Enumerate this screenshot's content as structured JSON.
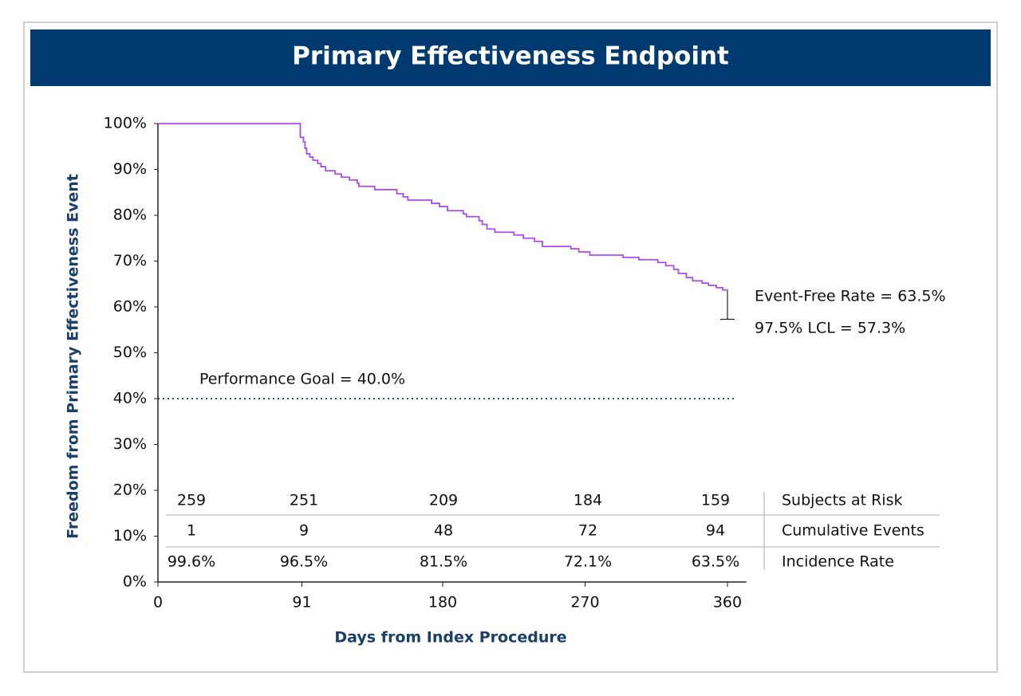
{
  "chart_data": {
    "type": "step",
    "title": "Primary Effectiveness Endpoint",
    "x_label": "Days from Index Procedure",
    "y_label": "Freedom from Primary Effectiveness Event",
    "xlim": [
      0,
      372
    ],
    "ylim": [
      0,
      100
    ],
    "xticks": [
      0,
      91,
      180,
      270,
      360
    ],
    "yticks": [
      {
        "value": 0,
        "label": "0%"
      },
      {
        "value": 10,
        "label": "10%"
      },
      {
        "value": 20,
        "label": "20%"
      },
      {
        "value": 30,
        "label": "30%"
      },
      {
        "value": 40,
        "label": "40%"
      },
      {
        "value": 50,
        "label": "50%"
      },
      {
        "value": 60,
        "label": "60%"
      },
      {
        "value": 70,
        "label": "70%"
      },
      {
        "value": 80,
        "label": "80%"
      },
      {
        "value": 90,
        "label": "90%"
      },
      {
        "value": 100,
        "label": "100%"
      }
    ],
    "series": [
      {
        "color": "#a94cf0",
        "x": [
          0,
          90,
          92,
          93,
          94,
          96,
          98,
          101,
          103,
          106,
          112,
          116,
          121,
          126,
          127,
          137,
          151,
          155,
          158,
          173,
          178,
          183,
          193,
          195,
          203,
          205,
          208,
          213,
          225,
          231,
          238,
          243,
          261,
          266,
          273,
          294,
          304,
          316,
          321,
          326,
          329,
          334,
          338,
          344,
          348,
          353,
          357,
          360
        ],
        "values": [
          100,
          97.0,
          96.0,
          94.6,
          93.4,
          92.7,
          92.0,
          91.3,
          90.6,
          89.7,
          89.0,
          88.3,
          87.7,
          87.0,
          86.3,
          85.6,
          84.7,
          84.0,
          83.3,
          82.6,
          81.9,
          81.0,
          80.3,
          79.7,
          78.8,
          78.0,
          77.0,
          76.3,
          75.7,
          75.0,
          74.3,
          73.2,
          72.7,
          72.0,
          71.3,
          70.8,
          70.3,
          69.7,
          69.0,
          68.2,
          67.3,
          66.4,
          65.7,
          65.2,
          64.7,
          64.2,
          63.7,
          63.5
        ]
      }
    ],
    "ci_lower": 57.3,
    "annotations": [
      "Event-Free Rate = 63.5%",
      "97.5% LCL = 57.3%"
    ],
    "reference_line": {
      "value": 40,
      "label": "Performance Goal = 40.0%",
      "color": "#1f4e79"
    },
    "risk_table": [
      {
        "name": "Subjects at Risk",
        "values": [
          259,
          251,
          209,
          184,
          159
        ]
      },
      {
        "name": "Cumulative Events",
        "values": [
          1,
          9,
          48,
          72,
          94
        ]
      },
      {
        "name": "Incidence Rate",
        "values": [
          99.6,
          96.5,
          81.5,
          72.1,
          63.5
        ],
        "value_labels": [
          "99.6%",
          "96.5%",
          "81.5%",
          "72.1%",
          "63.5%"
        ]
      }
    ]
  }
}
